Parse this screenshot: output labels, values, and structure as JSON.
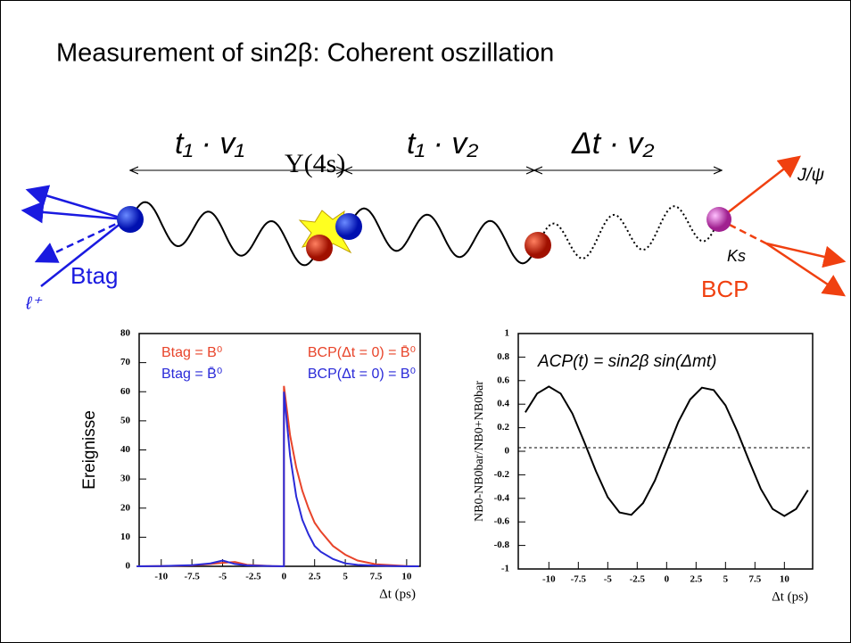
{
  "title": "Measurement of sin2β: Coherent oszillation",
  "diagram": {
    "t1v1": "t₁ · v₁",
    "upsilon": "Υ(4s)",
    "t1v2": "t₁ · v₂",
    "dtv2": "Δt · v₂",
    "btag": "Btag",
    "bcp": "BCP",
    "lepton": "ℓ⁺",
    "jpsi": "J/ψ",
    "ks": "Ks"
  },
  "chart_data": [
    {
      "type": "line",
      "xlabel": "Δt (ps)",
      "ylabel": "Ereignisse",
      "xlim": [
        -11.8,
        11.1
      ],
      "ylim": [
        0,
        80
      ],
      "xticks": [
        -10,
        -7.5,
        -5,
        -2.5,
        0,
        2.5,
        5,
        7.5,
        10
      ],
      "yticks": [
        0,
        10,
        20,
        30,
        40,
        50,
        60,
        70,
        80
      ],
      "series": [
        {
          "name": "Btag = B⁰",
          "color": "#e8442a",
          "x": [
            -12,
            -10,
            -7.5,
            -6,
            -5,
            -4,
            -3,
            -1,
            0,
            0,
            0.5,
            1,
            1.5,
            2,
            2.5,
            3,
            4,
            5,
            6,
            7.5,
            10,
            11
          ],
          "values": [
            0,
            0.1,
            0.3,
            0.8,
            1.2,
            1.5,
            0.5,
            0.1,
            0,
            62,
            45,
            34,
            26,
            20,
            15,
            12,
            7,
            4,
            2,
            0.7,
            0.1,
            0
          ]
        },
        {
          "name": "Btag = B̄⁰",
          "color": "#2a2ad8",
          "x": [
            -12,
            -10,
            -7.5,
            -6,
            -5,
            -4,
            -3,
            -1,
            0,
            0,
            0.5,
            1,
            1.5,
            2,
            2.5,
            3,
            4,
            5,
            6,
            7.5,
            10,
            11
          ],
          "values": [
            0,
            0.1,
            0.4,
            1,
            2,
            0.8,
            0.3,
            0.1,
            0,
            60,
            38,
            24,
            16,
            11,
            7,
            5,
            2.5,
            1,
            0.5,
            0.2,
            0,
            0
          ]
        }
      ],
      "annotations": [
        "BCP(Δt = 0) = B̄⁰",
        "BCP(Δt = 0) = B⁰"
      ]
    },
    {
      "type": "line",
      "xlabel": "Δt (ps)",
      "ylabel": "NB0-NB0bar/NB0+NB0bar",
      "xlim": [
        -12.6,
        12.4
      ],
      "ylim": [
        -1,
        1
      ],
      "xticks": [
        -10,
        -7.5,
        -5,
        -2.5,
        0,
        2.5,
        5,
        7.5,
        10
      ],
      "yticks": [
        -1,
        -0.8,
        -0.6,
        -0.4,
        -0.2,
        0,
        0.2,
        0.4,
        0.6,
        0.8,
        1
      ],
      "hline": 0.03,
      "series": [
        {
          "color": "#000000",
          "x": [
            -12,
            -11,
            -10,
            -9,
            -8,
            -7,
            -6,
            -5,
            -4,
            -3,
            -2,
            -1,
            0,
            1,
            2,
            3,
            4,
            5,
            6,
            7,
            8,
            9,
            10,
            11,
            12
          ],
          "values": [
            0.33,
            0.49,
            0.55,
            0.49,
            0.32,
            0.08,
            -0.17,
            -0.39,
            -0.52,
            -0.54,
            -0.44,
            -0.25,
            0,
            0.25,
            0.44,
            0.54,
            0.52,
            0.39,
            0.17,
            -0.08,
            -0.32,
            -0.49,
            -0.55,
            -0.49,
            -0.33
          ]
        }
      ],
      "annotations": [
        "ACP(t) = sin2β sin(Δmt)"
      ]
    }
  ]
}
